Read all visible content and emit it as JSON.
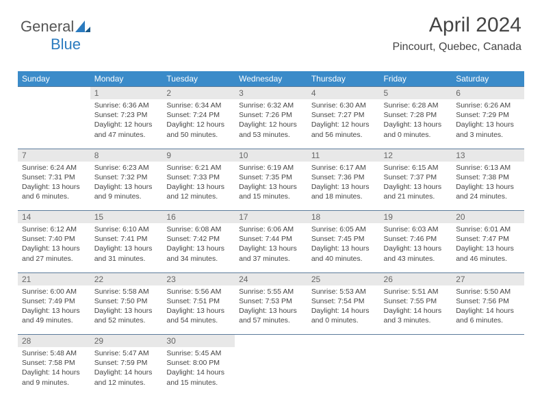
{
  "brand": {
    "part1": "General",
    "part2": "Blue"
  },
  "title": "April 2024",
  "location": "Pincourt, Quebec, Canada",
  "colors": {
    "header_bg": "#3b8bc9",
    "header_text": "#ffffff",
    "daynum_bg": "#e8e8e8",
    "daynum_text": "#666666",
    "border": "#5a7a9a",
    "body_text": "#444444",
    "logo_gray": "#555555",
    "logo_blue": "#2b7bbf"
  },
  "weekdays": [
    "Sunday",
    "Monday",
    "Tuesday",
    "Wednesday",
    "Thursday",
    "Friday",
    "Saturday"
  ],
  "weeks": [
    {
      "nums": [
        "",
        "1",
        "2",
        "3",
        "4",
        "5",
        "6"
      ],
      "cells": [
        null,
        {
          "sunrise": "Sunrise: 6:36 AM",
          "sunset": "Sunset: 7:23 PM",
          "daylight": "Daylight: 12 hours and 47 minutes."
        },
        {
          "sunrise": "Sunrise: 6:34 AM",
          "sunset": "Sunset: 7:24 PM",
          "daylight": "Daylight: 12 hours and 50 minutes."
        },
        {
          "sunrise": "Sunrise: 6:32 AM",
          "sunset": "Sunset: 7:26 PM",
          "daylight": "Daylight: 12 hours and 53 minutes."
        },
        {
          "sunrise": "Sunrise: 6:30 AM",
          "sunset": "Sunset: 7:27 PM",
          "daylight": "Daylight: 12 hours and 56 minutes."
        },
        {
          "sunrise": "Sunrise: 6:28 AM",
          "sunset": "Sunset: 7:28 PM",
          "daylight": "Daylight: 13 hours and 0 minutes."
        },
        {
          "sunrise": "Sunrise: 6:26 AM",
          "sunset": "Sunset: 7:29 PM",
          "daylight": "Daylight: 13 hours and 3 minutes."
        }
      ]
    },
    {
      "nums": [
        "7",
        "8",
        "9",
        "10",
        "11",
        "12",
        "13"
      ],
      "cells": [
        {
          "sunrise": "Sunrise: 6:24 AM",
          "sunset": "Sunset: 7:31 PM",
          "daylight": "Daylight: 13 hours and 6 minutes."
        },
        {
          "sunrise": "Sunrise: 6:23 AM",
          "sunset": "Sunset: 7:32 PM",
          "daylight": "Daylight: 13 hours and 9 minutes."
        },
        {
          "sunrise": "Sunrise: 6:21 AM",
          "sunset": "Sunset: 7:33 PM",
          "daylight": "Daylight: 13 hours and 12 minutes."
        },
        {
          "sunrise": "Sunrise: 6:19 AM",
          "sunset": "Sunset: 7:35 PM",
          "daylight": "Daylight: 13 hours and 15 minutes."
        },
        {
          "sunrise": "Sunrise: 6:17 AM",
          "sunset": "Sunset: 7:36 PM",
          "daylight": "Daylight: 13 hours and 18 minutes."
        },
        {
          "sunrise": "Sunrise: 6:15 AM",
          "sunset": "Sunset: 7:37 PM",
          "daylight": "Daylight: 13 hours and 21 minutes."
        },
        {
          "sunrise": "Sunrise: 6:13 AM",
          "sunset": "Sunset: 7:38 PM",
          "daylight": "Daylight: 13 hours and 24 minutes."
        }
      ]
    },
    {
      "nums": [
        "14",
        "15",
        "16",
        "17",
        "18",
        "19",
        "20"
      ],
      "cells": [
        {
          "sunrise": "Sunrise: 6:12 AM",
          "sunset": "Sunset: 7:40 PM",
          "daylight": "Daylight: 13 hours and 27 minutes."
        },
        {
          "sunrise": "Sunrise: 6:10 AM",
          "sunset": "Sunset: 7:41 PM",
          "daylight": "Daylight: 13 hours and 31 minutes."
        },
        {
          "sunrise": "Sunrise: 6:08 AM",
          "sunset": "Sunset: 7:42 PM",
          "daylight": "Daylight: 13 hours and 34 minutes."
        },
        {
          "sunrise": "Sunrise: 6:06 AM",
          "sunset": "Sunset: 7:44 PM",
          "daylight": "Daylight: 13 hours and 37 minutes."
        },
        {
          "sunrise": "Sunrise: 6:05 AM",
          "sunset": "Sunset: 7:45 PM",
          "daylight": "Daylight: 13 hours and 40 minutes."
        },
        {
          "sunrise": "Sunrise: 6:03 AM",
          "sunset": "Sunset: 7:46 PM",
          "daylight": "Daylight: 13 hours and 43 minutes."
        },
        {
          "sunrise": "Sunrise: 6:01 AM",
          "sunset": "Sunset: 7:47 PM",
          "daylight": "Daylight: 13 hours and 46 minutes."
        }
      ]
    },
    {
      "nums": [
        "21",
        "22",
        "23",
        "24",
        "25",
        "26",
        "27"
      ],
      "cells": [
        {
          "sunrise": "Sunrise: 6:00 AM",
          "sunset": "Sunset: 7:49 PM",
          "daylight": "Daylight: 13 hours and 49 minutes."
        },
        {
          "sunrise": "Sunrise: 5:58 AM",
          "sunset": "Sunset: 7:50 PM",
          "daylight": "Daylight: 13 hours and 52 minutes."
        },
        {
          "sunrise": "Sunrise: 5:56 AM",
          "sunset": "Sunset: 7:51 PM",
          "daylight": "Daylight: 13 hours and 54 minutes."
        },
        {
          "sunrise": "Sunrise: 5:55 AM",
          "sunset": "Sunset: 7:53 PM",
          "daylight": "Daylight: 13 hours and 57 minutes."
        },
        {
          "sunrise": "Sunrise: 5:53 AM",
          "sunset": "Sunset: 7:54 PM",
          "daylight": "Daylight: 14 hours and 0 minutes."
        },
        {
          "sunrise": "Sunrise: 5:51 AM",
          "sunset": "Sunset: 7:55 PM",
          "daylight": "Daylight: 14 hours and 3 minutes."
        },
        {
          "sunrise": "Sunrise: 5:50 AM",
          "sunset": "Sunset: 7:56 PM",
          "daylight": "Daylight: 14 hours and 6 minutes."
        }
      ]
    },
    {
      "nums": [
        "28",
        "29",
        "30",
        "",
        "",
        "",
        ""
      ],
      "cells": [
        {
          "sunrise": "Sunrise: 5:48 AM",
          "sunset": "Sunset: 7:58 PM",
          "daylight": "Daylight: 14 hours and 9 minutes."
        },
        {
          "sunrise": "Sunrise: 5:47 AM",
          "sunset": "Sunset: 7:59 PM",
          "daylight": "Daylight: 14 hours and 12 minutes."
        },
        {
          "sunrise": "Sunrise: 5:45 AM",
          "sunset": "Sunset: 8:00 PM",
          "daylight": "Daylight: 14 hours and 15 minutes."
        },
        null,
        null,
        null,
        null
      ]
    }
  ]
}
